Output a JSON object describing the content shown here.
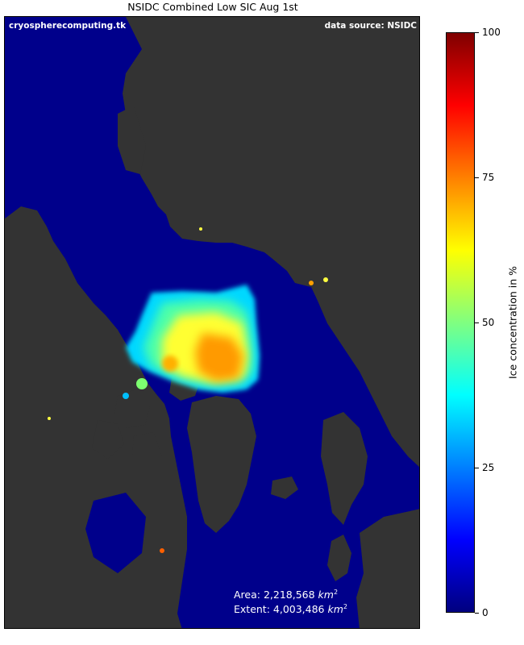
{
  "title": "NSIDC Combined Low SIC Aug 1st",
  "credits": {
    "left": "cryospherecomputing.tk",
    "right": "data source: NSIDC"
  },
  "stats": {
    "area_label": "Area: 2,218,568 ",
    "extent_label": "Extent: 4,003,486 ",
    "unit": "km",
    "unit_power": "2"
  },
  "colorbar": {
    "label": "Ice concentration in %",
    "min": 0,
    "max": 100,
    "ticks": [
      "0",
      "25",
      "50",
      "75",
      "100"
    ],
    "colors": [
      "#00007f",
      "#0000ff",
      "#0080ff",
      "#00ffff",
      "#80ff80",
      "#ffff00",
      "#ff8000",
      "#ff0000",
      "#7f0000"
    ]
  },
  "map": {
    "ocean_color": "#00008b",
    "land_color": "#333333",
    "ice_colors": {
      "low": "#00d8ff",
      "medium": "#4cffaa",
      "high": "#ffff30",
      "peak": "#ff9a00"
    }
  }
}
